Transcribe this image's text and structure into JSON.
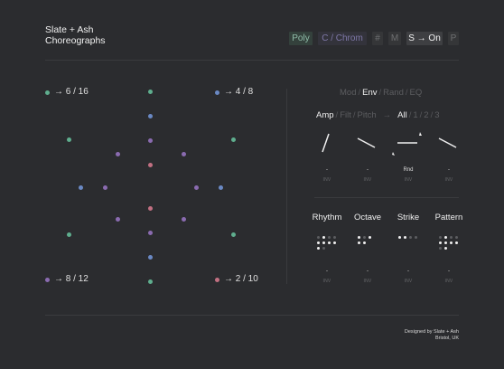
{
  "brand": {
    "line1": "Slate + Ash",
    "line2": "Choreographs"
  },
  "toolbar": {
    "poly": "Poly",
    "chrom": "C / Chrom",
    "sharp": "#",
    "m": "M",
    "son": "S → On",
    "p": "P"
  },
  "colors": {
    "background": "#2b2c2f",
    "green": "#5fae8e",
    "blue": "#6a89c4",
    "purple": "#8a6bb0",
    "rose": "#c27082"
  },
  "corners": {
    "top_left": "→ 6 / 16",
    "top_right": "→ 4 / 8",
    "bottom_left": "→ 8 / 12",
    "bottom_right": "→ 2 / 10"
  },
  "tabs": {
    "mod": "Mod",
    "env": "Env",
    "rand": "Rand",
    "eq": "EQ",
    "active": "Env"
  },
  "targets": {
    "amp": "Amp",
    "filt": "Filt",
    "pitch": "Pitch",
    "arrow": "→",
    "all": "All",
    "one": "1",
    "two": "2",
    "three": "3"
  },
  "envelopes": [
    {
      "value": "-",
      "inv": "INV"
    },
    {
      "value": "-",
      "inv": "INV"
    },
    {
      "value": "Rnd",
      "inv": "INV"
    },
    {
      "value": "-",
      "inv": "INV"
    }
  ],
  "patterns": [
    {
      "label": "Rhythm",
      "value": "-",
      "inv": "INV"
    },
    {
      "label": "Octave",
      "value": "-",
      "inv": "INV"
    },
    {
      "label": "Strike",
      "value": "-",
      "inv": "INV"
    },
    {
      "label": "Pattern",
      "value": "-",
      "inv": "INV"
    }
  ],
  "footer": {
    "line1": "Designed by Slate + Ash",
    "line2": "Bristol, UK"
  }
}
